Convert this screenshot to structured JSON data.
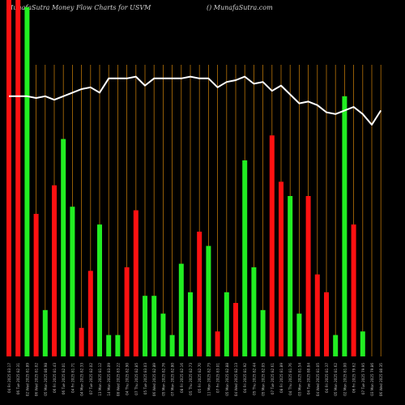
{
  "header": {
    "title": "MunafaSutra  Money Flow  Charts for USVM",
    "site": "() MunafaSutra.com"
  },
  "colors": {
    "background": "#000000",
    "up": "#22ee22",
    "down": "#ff1111",
    "grid": "#b87308",
    "line": "#ffffff",
    "label": "#bbbbbb"
  },
  "chart_data": {
    "type": "bar",
    "title": "MunafaSutra  Money Flow  Charts for USVM",
    "categories": [
      "04 Fri 2025 83.17",
      "06 Tue 2025 82.31",
      "02 Wed 2025 81.89",
      "06 Wed 2025 81.02",
      "05 Mon 2025 80.98",
      "06 Fri 2025 81.43",
      "06 Tue 2025 82.01",
      "04 Fri 2025 81.71",
      "04 Mon 2025 82.33",
      "07 Tue 2025 82.02",
      "13 Mon 2025 81.12",
      "14 Mon 2025 83.09",
      "08 Wed 2025 83.22",
      "04 Thu 2025 82.90",
      "07 Thu 2025 82.85",
      "05 Tue 2025 83.03",
      "06 Wed 2025 82.89",
      "05 Mon 2025 82.76",
      "07 Mon 2025 82.80",
      "08 Fri 2025 82.16",
      "05 Thu 2025 82.73",
      "05 Fri 2025 82.70",
      "11 Mon 2025 82.75",
      "07 Fri 2025 83.01",
      "05 Mon 2025 82.88",
      "04 Wed 2025 82.13",
      "04 Fri 2025 81.92",
      "05 Thu 2025 82.44",
      "05 Mon 2025 82.05",
      "07 Tue 2025 82.61",
      "08 Fri 2025 81.89",
      "04 Thu 2025 81.76",
      "03 Mon 2025 81.54",
      "04 Tue 2025 80.84",
      "04 Wed 2025 81.05",
      "04 Fri 2025 81.37",
      "05 Mon 2025 81.62",
      "02 Mon 2025 81.00",
      "06 Fri 2025 79.62",
      "07 Tue 2025 79.95",
      "03 Mon 2025 79.86",
      "06 Wed 2025 80.35"
    ],
    "values": [
      100,
      100,
      98,
      40,
      13,
      48,
      61,
      42,
      8,
      24,
      37,
      6,
      6,
      25,
      41,
      17,
      17,
      12,
      6,
      26,
      18,
      35,
      31,
      7,
      18,
      15,
      55,
      25,
      13,
      62,
      49,
      45,
      12,
      45,
      23,
      18,
      6,
      73,
      37,
      7,
      0,
      0
    ],
    "directions": [
      "down",
      "down",
      "up",
      "down",
      "up",
      "down",
      "up",
      "up",
      "down",
      "down",
      "up",
      "up",
      "up",
      "down",
      "down",
      "up",
      "up",
      "up",
      "up",
      "up",
      "up",
      "down",
      "up",
      "down",
      "up",
      "down",
      "up",
      "up",
      "up",
      "down",
      "down",
      "up",
      "up",
      "down",
      "down",
      "down",
      "up",
      "up",
      "down",
      "up",
      "none",
      "none"
    ],
    "price_line": [
      73,
      73,
      73,
      72.5,
      73,
      72,
      73,
      74,
      75,
      75.5,
      74,
      78,
      78,
      78,
      78.5,
      76,
      78,
      78,
      78,
      78,
      78.5,
      78,
      78,
      75.5,
      77,
      77.5,
      78.5,
      76.5,
      77,
      74.5,
      76,
      73.5,
      71,
      71.5,
      70.5,
      68.5,
      68,
      69,
      70,
      68,
      65,
      69
    ],
    "ylim": [
      0,
      100
    ],
    "grid": true,
    "xlabel": "",
    "ylabel": ""
  }
}
